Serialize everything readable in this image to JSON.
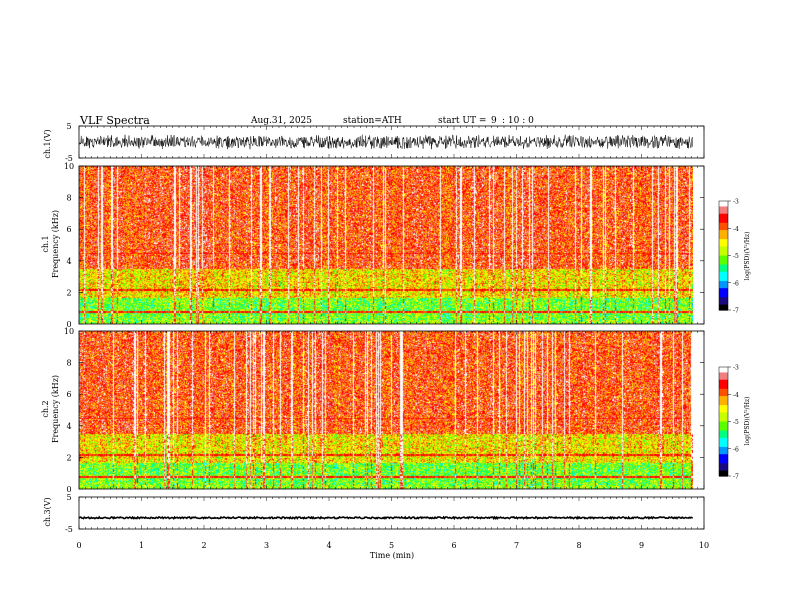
{
  "header": {
    "title": "VLF Spectra",
    "date": "Aug.31, 2025",
    "station": "station=ATH",
    "start_label": "start UT =",
    "start_hour": "9",
    "start_min": ": 10 : 0"
  },
  "chart_data": [
    {
      "type": "line",
      "name": "ch1-waveform",
      "ylabel": "ch.1(V)",
      "ylim": [
        -5,
        5
      ],
      "yticks": [
        "5",
        "-5"
      ],
      "xlim": [
        0,
        10
      ],
      "description_values": {
        "x_end": 9.82,
        "amplitude_approx": 2
      }
    },
    {
      "type": "heatmap",
      "name": "ch1-spectrogram",
      "ylabel_line1": "ch.1",
      "ylabel_line2": "Frequency (kHz)",
      "ylim": [
        0,
        10
      ],
      "yticks": [
        "0",
        "2",
        "4",
        "6",
        "8",
        "10"
      ],
      "xlim": [
        0,
        9.82
      ],
      "colorbar": {
        "label": "log(PSD)(V²/Hz)",
        "range": [
          -7,
          -3
        ],
        "ticks": [
          "-3",
          "-4",
          "-5",
          "-6",
          "-7"
        ]
      }
    },
    {
      "type": "heatmap",
      "name": "ch2-spectrogram",
      "ylabel_line1": "ch.2",
      "ylabel_line2": "Frequency (kHz)",
      "ylim": [
        0,
        10
      ],
      "yticks": [
        "0",
        "2",
        "4",
        "6",
        "8",
        "10"
      ],
      "xlim": [
        0,
        9.82
      ],
      "colorbar": {
        "label": "log(PSD)(V²/Hz)",
        "range": [
          -7,
          -3
        ],
        "ticks": [
          "-3",
          "-4",
          "-5",
          "-6",
          "-7"
        ]
      }
    },
    {
      "type": "line",
      "name": "ch3-waveform",
      "ylabel": "ch.3(V)",
      "ylim": [
        -5,
        5
      ],
      "yticks": [
        "5",
        "-5"
      ],
      "xlim": [
        0,
        10
      ],
      "description_values": {
        "x_end": 9.82,
        "level": -1.5
      }
    }
  ],
  "xaxis": {
    "label": "Time (min)",
    "range": [
      0,
      10
    ],
    "ticks": [
      "0",
      "1",
      "2",
      "3",
      "4",
      "5",
      "6",
      "7",
      "8",
      "9",
      "10"
    ]
  },
  "colors": {
    "palette": [
      "#000000",
      "#1a0a80",
      "#0000ff",
      "#0096ff",
      "#00ffff",
      "#00ff80",
      "#5aff00",
      "#c8ff00",
      "#ffff00",
      "#ffb000",
      "#ff5000",
      "#ff0000",
      "#f08080",
      "#ffffff"
    ]
  }
}
